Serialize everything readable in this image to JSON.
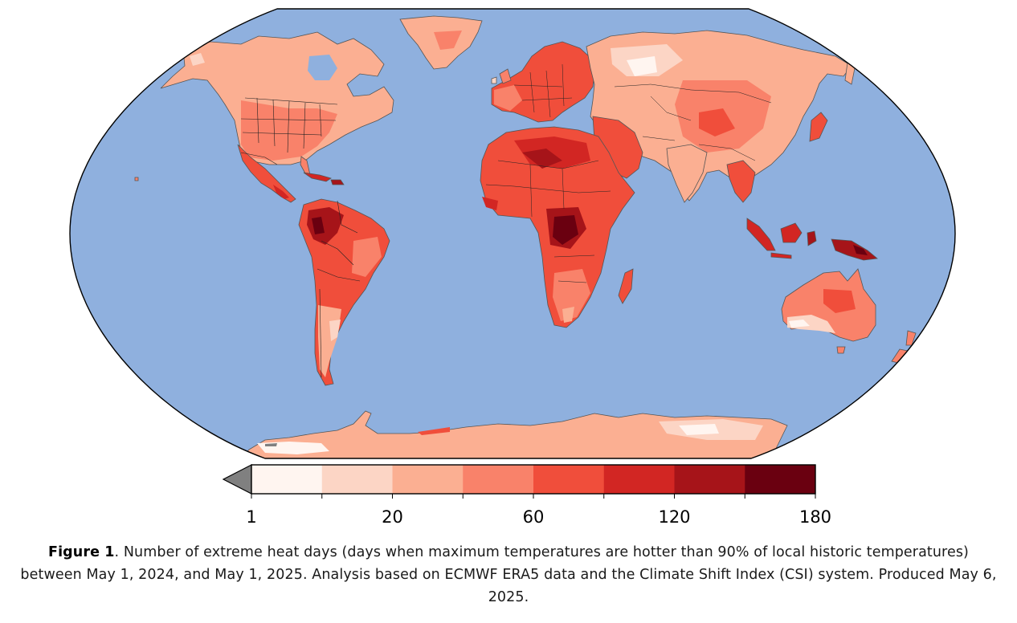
{
  "figure": {
    "label": "Figure 1",
    "caption_text": ". Number of extreme heat days (days when maximum temperatures are hotter than 90% of local historic temperatures) between May 1, 2024, and May 1, 2025. Analysis based on ECMWF ERA5 data and the Climate Shift Index (CSI) system. Produced May 6, 2025."
  },
  "map": {
    "projection": "Robinson",
    "ocean_color": "#8FB0DE",
    "border_color": "#000000"
  },
  "colorbar": {
    "ticks": [
      {
        "label": "1"
      },
      {
        "label": "20"
      },
      {
        "label": "60"
      },
      {
        "label": "120"
      },
      {
        "label": "180"
      }
    ],
    "bins": [
      "#FFF5F0",
      "#FCD5C5",
      "#FBAF92",
      "#F9826A",
      "#F04E3B",
      "#D22623",
      "#A61419",
      "#6A0010"
    ],
    "under_color": "#808080",
    "extend": "min"
  },
  "chart_data": {
    "type": "heatmap",
    "title": "Number of extreme heat days, May 1, 2024 – May 1, 2025",
    "variable": "extreme heat days (Tmax > local 90th percentile)",
    "colorbar_ticks": [
      1,
      20,
      60,
      120,
      180
    ],
    "colorbar_bins": 8,
    "colorbar_range": [
      1,
      180
    ],
    "colorbar_extend": "min",
    "units": "days",
    "regions_qualitative": [
      {
        "region": "Central Africa (Congo Basin)",
        "level": "120-180"
      },
      {
        "region": "Northern South America / Amazon",
        "level": "90-180"
      },
      {
        "region": "Indonesia / New Guinea",
        "level": "90-180"
      },
      {
        "region": "Sahara / North Africa",
        "level": "60-150"
      },
      {
        "region": "Central America / Caribbean",
        "level": "60-150"
      },
      {
        "region": "Middle East",
        "level": "40-90"
      },
      {
        "region": "Europe",
        "level": "40-90"
      },
      {
        "region": "United States",
        "level": "20-60"
      },
      {
        "region": "Canada / Greenland",
        "level": "10-40"
      },
      {
        "region": "Siberia / Kazakhstan",
        "level": "1-30"
      },
      {
        "region": "Australia",
        "level": "10-60"
      },
      {
        "region": "Antarctica",
        "level": "1-40"
      }
    ],
    "source": "ECMWF ERA5; Climate Shift Index (CSI)",
    "produced": "May 6, 2025"
  }
}
